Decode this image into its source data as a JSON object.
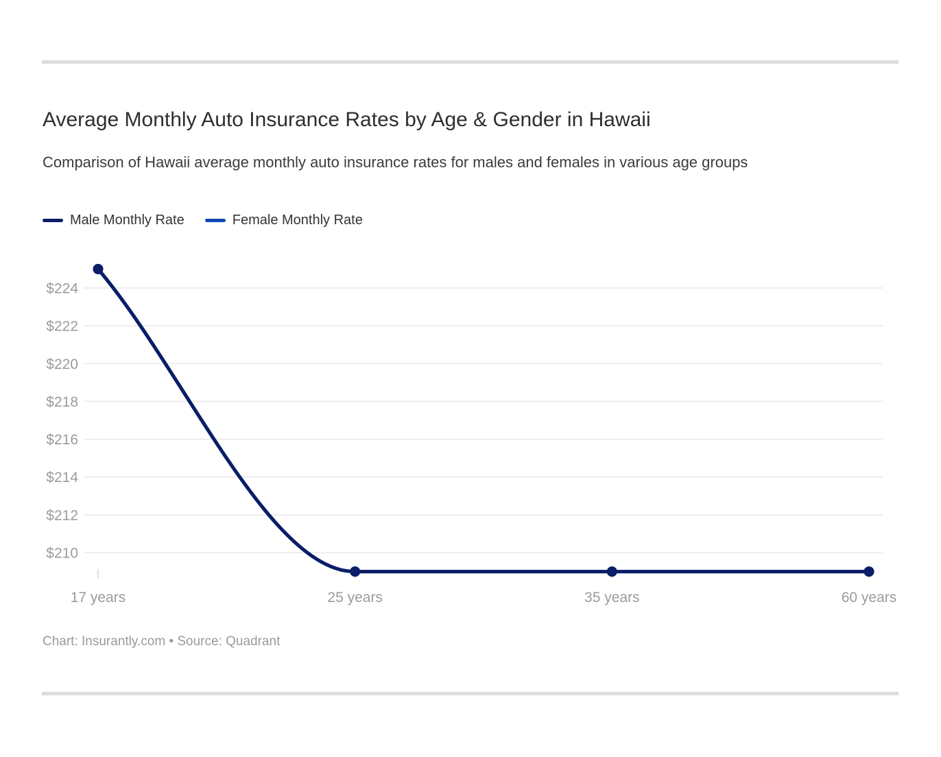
{
  "chart_data": {
    "type": "line",
    "title": "Average Monthly Auto Insurance Rates by Age & Gender in Hawaii",
    "subtitle": "Comparison of Hawaii average monthly auto insurance rates for males and females in various age groups",
    "footer": "Chart: Insurantly.com • Source: Quadrant",
    "categories": [
      "17 years",
      "25 years",
      "35 years",
      "60 years"
    ],
    "series": [
      {
        "name": "Male Monthly Rate",
        "color": "#0b1d66",
        "values": [
          225,
          209,
          209,
          209
        ]
      },
      {
        "name": "Female Monthly Rate",
        "color": "#1348b4",
        "values": [
          225,
          209,
          209,
          209
        ],
        "note": "identical to male series; line is fully overlapped by the male line"
      }
    ],
    "xlabel": "",
    "ylabel": "",
    "y_tick_prefix": "$",
    "y_ticks": [
      224,
      222,
      220,
      218,
      216,
      214,
      212,
      210
    ],
    "ylim": [
      208.2,
      225.8
    ],
    "grid": "horizontal",
    "legend_position": "top-left",
    "curve": "monotone",
    "point_markers": true,
    "colors": {
      "gridline": "#e8e8e8",
      "axis_tick": "#d8d8d8",
      "tick_label": "#9b9b9b"
    }
  }
}
